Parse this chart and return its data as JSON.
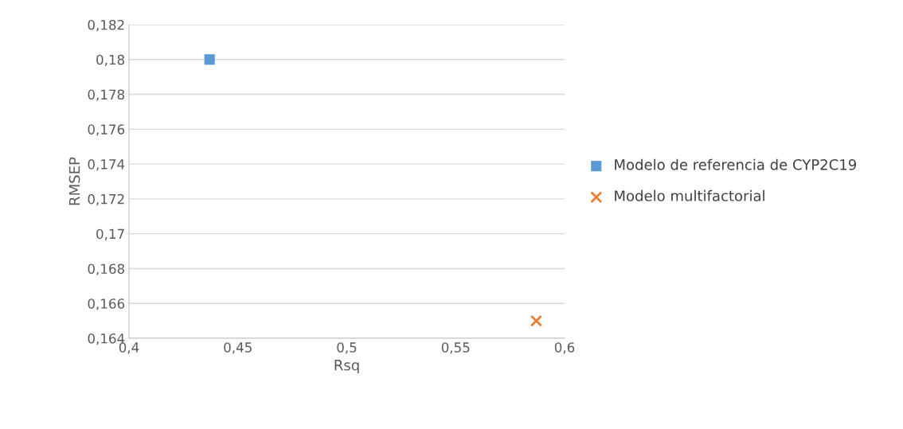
{
  "chart_data": {
    "type": "scatter",
    "xlabel": "Rsq",
    "ylabel": "RMSEP",
    "series": [
      {
        "name": "Modelo de referencia de CYP2C19",
        "color": "#5b9bd5",
        "marker": "square",
        "x": [
          0.437
        ],
        "values": [
          0.18
        ]
      },
      {
        "name": "Modelo multifactorial",
        "color": "#ed7d31",
        "marker": "cross",
        "x": [
          0.587
        ],
        "values": [
          0.165
        ]
      }
    ],
    "xlim": [
      0.4,
      0.6
    ],
    "xticks": [
      {
        "value": 0.4,
        "label": "0,4"
      },
      {
        "value": 0.45,
        "label": "0,45"
      },
      {
        "value": 0.5,
        "label": "0,5"
      },
      {
        "value": 0.55,
        "label": "0,55"
      },
      {
        "value": 0.6,
        "label": "0,6"
      }
    ],
    "ylim": [
      0.164,
      0.182
    ],
    "yticks": [
      {
        "value": 0.164,
        "label": "0,164"
      },
      {
        "value": 0.166,
        "label": "0,166"
      },
      {
        "value": 0.168,
        "label": "0,168"
      },
      {
        "value": 0.17,
        "label": "0,17"
      },
      {
        "value": 0.172,
        "label": "0,172"
      },
      {
        "value": 0.174,
        "label": "0,174"
      },
      {
        "value": 0.176,
        "label": "0,176"
      },
      {
        "value": 0.178,
        "label": "0,178"
      },
      {
        "value": 0.18,
        "label": "0,18"
      },
      {
        "value": 0.182,
        "label": "0,182"
      }
    ],
    "grid": "y",
    "legend": "right"
  }
}
